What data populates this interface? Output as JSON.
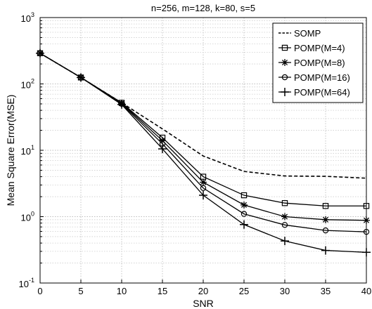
{
  "chart_data": {
    "type": "line",
    "title": "n=256, m=128, k=80, s=5",
    "xlabel": "SNR",
    "ylabel": "Mean Square Error(MSE)",
    "y_scale": "log",
    "xlim": [
      0,
      40
    ],
    "ylim": [
      0.1,
      1000
    ],
    "grid": true,
    "legend_position": "top-right",
    "x": [
      0,
      5,
      10,
      15,
      20,
      25,
      30,
      35,
      40
    ],
    "x_tick_labels": [
      "0",
      "5",
      "10",
      "15",
      "20",
      "25",
      "30",
      "35",
      "40"
    ],
    "y_tick_labels": [
      {
        "base": "10",
        "exp": "-1"
      },
      {
        "base": "10",
        "exp": "0"
      },
      {
        "base": "10",
        "exp": "1"
      },
      {
        "base": "10",
        "exp": "2"
      },
      {
        "base": "10",
        "exp": "3"
      }
    ],
    "series": [
      {
        "name": "SOMP",
        "marker": "none",
        "dash": true,
        "values": [
          290,
          125,
          52,
          21,
          8.2,
          4.8,
          4.1,
          4.05,
          3.8
        ]
      },
      {
        "name": "POMP(M=4)",
        "marker": "square",
        "dash": false,
        "values": [
          290,
          125,
          52,
          15.5,
          4.0,
          2.1,
          1.6,
          1.45,
          1.45
        ]
      },
      {
        "name": "POMP(M=8)",
        "marker": "star",
        "dash": false,
        "values": [
          290,
          125,
          51,
          14,
          3.3,
          1.5,
          1.0,
          0.9,
          0.88
        ]
      },
      {
        "name": "POMP(M=16)",
        "marker": "circle",
        "dash": false,
        "values": [
          290,
          125,
          50,
          12.5,
          2.7,
          1.1,
          0.75,
          0.62,
          0.59
        ]
      },
      {
        "name": "POMP(M=64)",
        "marker": "plus",
        "dash": false,
        "values": [
          290,
          125,
          49,
          10.5,
          2.1,
          0.76,
          0.43,
          0.31,
          0.29
        ]
      }
    ]
  }
}
